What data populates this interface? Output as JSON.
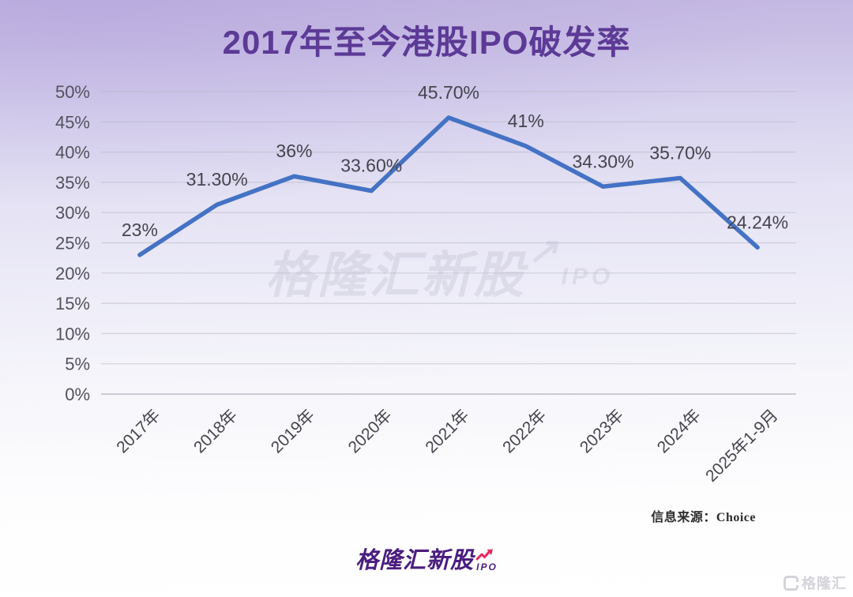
{
  "chart_data": {
    "type": "line",
    "title": "2017年至今港股IPO破发率",
    "categories": [
      "2017年",
      "2018年",
      "2019年",
      "2020年",
      "2021年",
      "2022年",
      "2023年",
      "2024年",
      "2025年1-9月"
    ],
    "values": [
      23,
      31.3,
      36,
      33.6,
      45.7,
      41,
      34.3,
      35.7,
      24.24
    ],
    "point_labels": [
      "23%",
      "31.30%",
      "36%",
      "33.60%",
      "45.70%",
      "41%",
      "34.30%",
      "35.70%",
      "24.24%"
    ],
    "xlabel": "",
    "ylabel": "",
    "ylim": [
      0,
      50
    ],
    "y_tick_step": 5,
    "y_tick_labels": [
      "0%",
      "5%",
      "10%",
      "15%",
      "20%",
      "25%",
      "30%",
      "35%",
      "40%",
      "45%",
      "50%"
    ],
    "grid": true,
    "legend": "none",
    "line_color": "#4472c4"
  },
  "watermark": {
    "text": "格隆汇新股",
    "arrow": "↗",
    "suffix": "IPO"
  },
  "source_note": "信息来源：Choice",
  "footer_logo": {
    "text": "格隆汇新股",
    "suffix": "IPO"
  },
  "corner_logo": {
    "text": "格隆汇"
  },
  "colors": {
    "title": "#5c3a96",
    "line": "#4472c4",
    "axis_text": "#53525e",
    "data_label": "#45444e",
    "logo_purple": "#4a1d7e",
    "logo_arrow_red": "#e8285f",
    "background_top": "#c2b6e1",
    "background_bottom": "#ffffff"
  }
}
